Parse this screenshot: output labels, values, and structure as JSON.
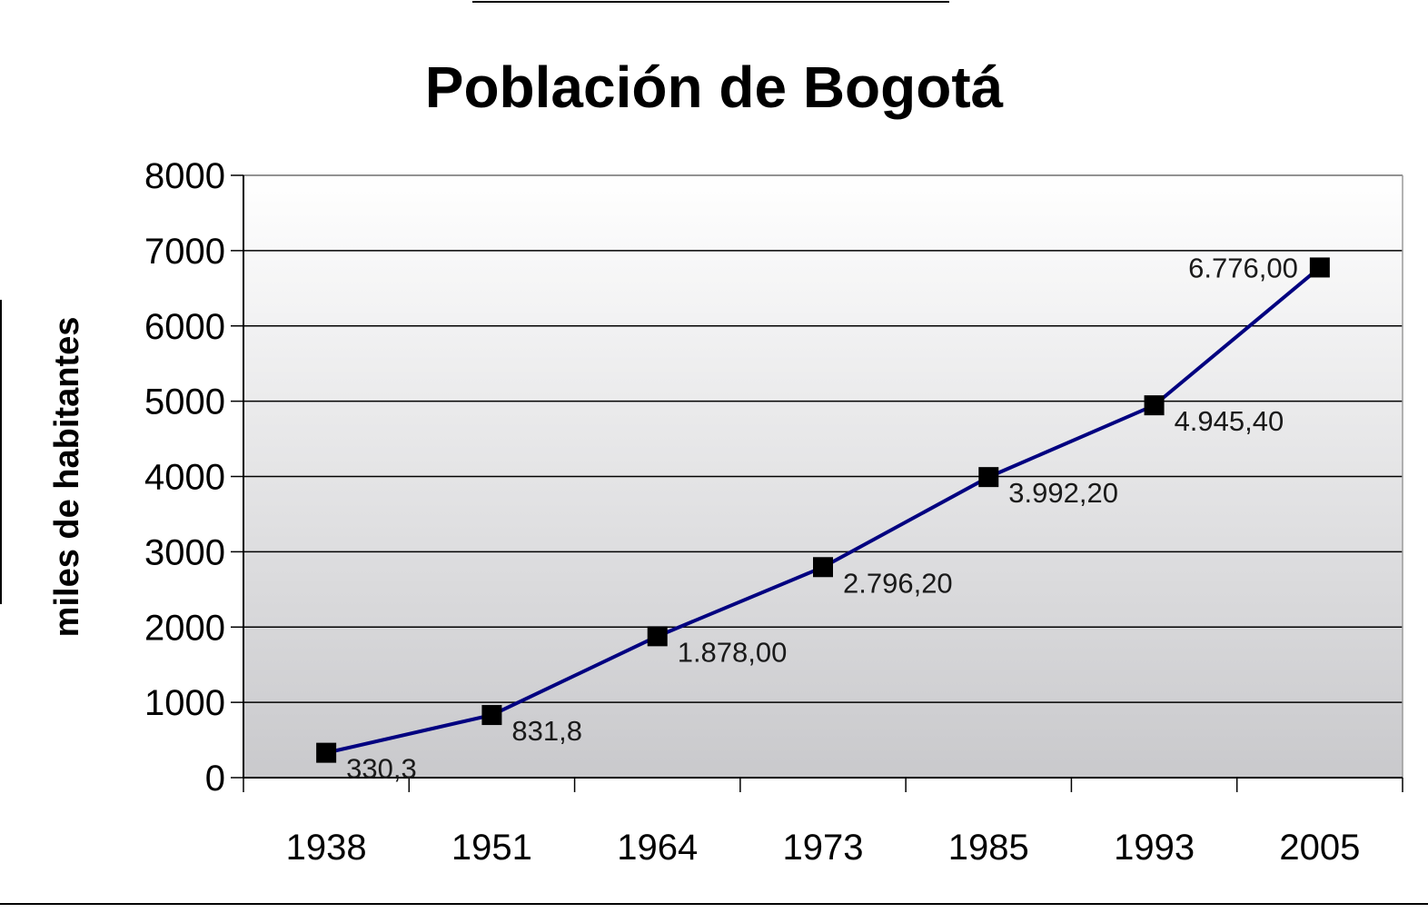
{
  "chart_data": {
    "type": "line",
    "title": "Población de Bogotá",
    "xlabel": "",
    "ylabel": "miles de habitantes",
    "categories": [
      "1938",
      "1951",
      "1964",
      "1973",
      "1985",
      "1993",
      "2005"
    ],
    "series": [
      {
        "values": [
          330.3,
          831.8,
          1878.0,
          2796.2,
          3992.2,
          4945.4,
          6776.0
        ],
        "data_labels": [
          "330,3",
          "831,8",
          "1.878,00",
          "2.796,20",
          "3.992,20",
          "4.945,40",
          "6.776,00"
        ],
        "color": "#000080",
        "marker_color": "#000000"
      }
    ],
    "ylim": [
      0,
      8000
    ],
    "yticks": [
      "0",
      "1000",
      "2000",
      "3000",
      "4000",
      "5000",
      "6000",
      "7000",
      "8000"
    ],
    "grid": true,
    "legend": "none",
    "plot_background": "gradient white-to-gray"
  }
}
